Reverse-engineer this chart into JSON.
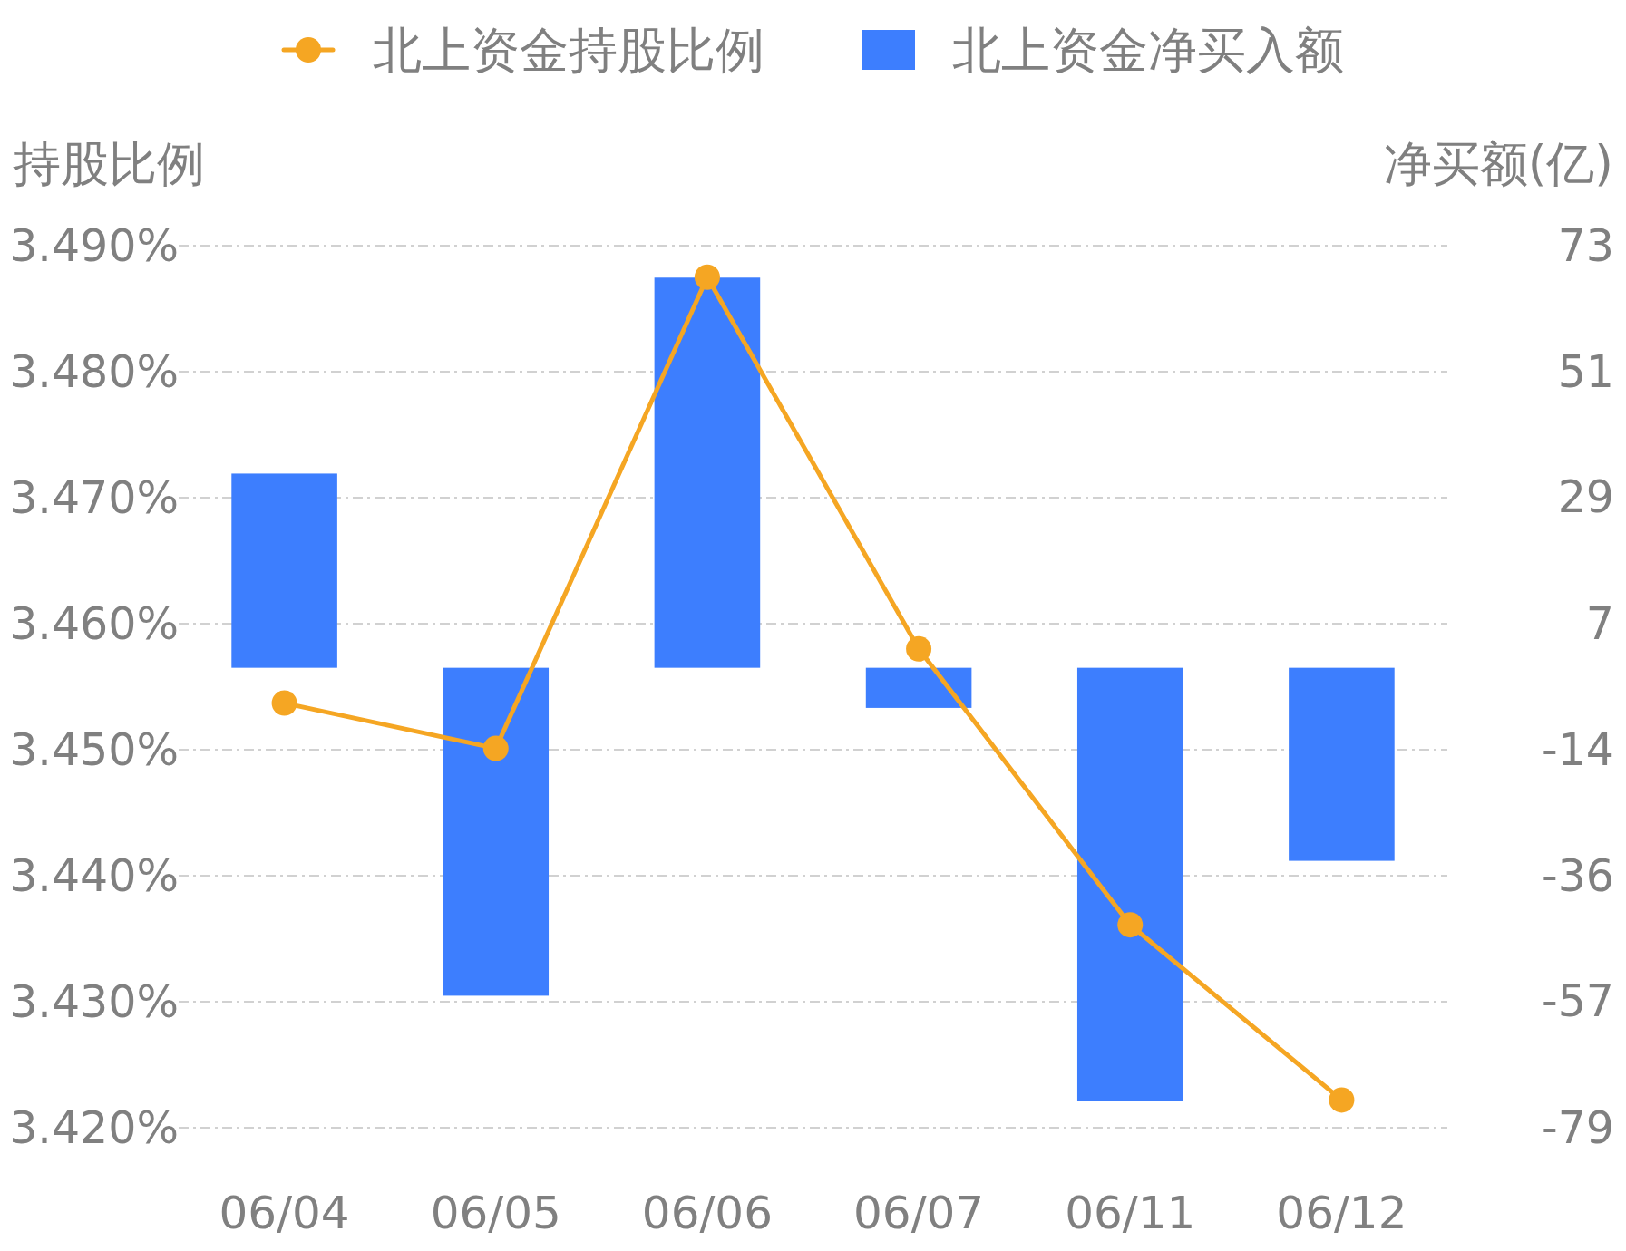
{
  "chart_data": {
    "type": "bar",
    "categories": [
      "06/04",
      "06/05",
      "06/06",
      "06/07",
      "06/11",
      "06/12"
    ],
    "ylabel": "持股比例",
    "y2label": "净买额(亿)",
    "series": [
      {
        "name": "北上资金持股比例",
        "type": "line",
        "color": "#f5a623",
        "values": [
          3.4537,
          3.4501,
          3.4875,
          3.458,
          3.4361,
          3.4222
        ]
      },
      {
        "name": "北上资金净买入额",
        "axis": "y2",
        "color": "#3d7efe",
        "values": [
          33.4,
          -56.4,
          67.1,
          -6.9,
          -74.5,
          -33.2
        ]
      }
    ],
    "ylim": [
      3.42,
      3.49
    ],
    "yticks": [
      {
        "value": 3.42,
        "label": "3.420%"
      },
      {
        "value": 3.43,
        "label": "3.430%"
      },
      {
        "value": 3.44,
        "label": "3.440%"
      },
      {
        "value": 3.45,
        "label": "3.450%"
      },
      {
        "value": 3.46,
        "label": "3.460%"
      },
      {
        "value": 3.47,
        "label": "3.470%"
      },
      {
        "value": 3.48,
        "label": "3.480%"
      },
      {
        "value": 3.49,
        "label": "3.490%"
      }
    ],
    "y2lim": [
      -79.1,
      72.6
    ],
    "y2ticks": [
      {
        "value": -79.1,
        "label": "-79"
      },
      {
        "value": -57.4,
        "label": "-57"
      },
      {
        "value": -35.8,
        "label": "-36"
      },
      {
        "value": -14.1,
        "label": "-14"
      },
      {
        "value": 7.5,
        "label": "7"
      },
      {
        "value": 29.3,
        "label": "29"
      },
      {
        "value": 50.9,
        "label": "51"
      },
      {
        "value": 72.6,
        "label": "73"
      }
    ],
    "grid": "y",
    "legend": "top",
    "marker": "circle"
  }
}
